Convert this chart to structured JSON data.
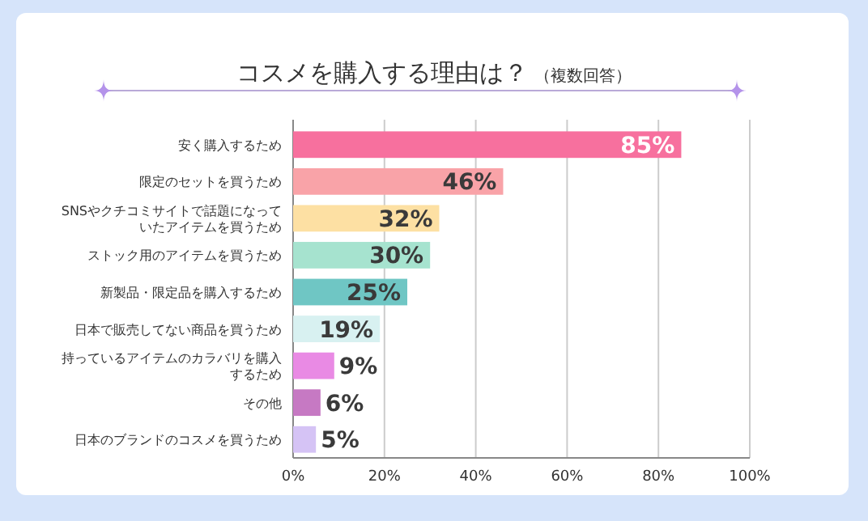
{
  "chart_data": {
    "type": "bar",
    "orientation": "horizontal",
    "title": "コスメを購入する理由は？",
    "subtitle": "（複数回答）",
    "categories": [
      "安く購入するため",
      "限定のセットを買うため",
      "SNSやクチコミサイトで話題になっていたアイテムを買うため",
      "ストック用のアイテムを買うため",
      "新製品・限定品を購入するため",
      "日本で販売してない商品を買うため",
      "持っているアイテムのカラバリを購入するため",
      "その他",
      "日本のブランドのコスメを買うため"
    ],
    "values": [
      85,
      46,
      32,
      30,
      25,
      19,
      9,
      6,
      5
    ],
    "value_labels": [
      "85%",
      "46%",
      "32%",
      "30%",
      "25%",
      "19%",
      "9%",
      "6%",
      "5%"
    ],
    "colors": [
      "#f7709e",
      "#f9a3a8",
      "#fde0a3",
      "#a6e3cf",
      "#6fc6c4",
      "#d8f1f1",
      "#e98ae4",
      "#c679c3",
      "#d5c3f5"
    ],
    "xlim": [
      0,
      100
    ],
    "xticks": [
      {
        "value": 0,
        "label": "0%"
      },
      {
        "value": 20,
        "label": "20%"
      },
      {
        "value": 40,
        "label": "40%"
      },
      {
        "value": 60,
        "label": "60%"
      },
      {
        "value": 80,
        "label": "80%"
      },
      {
        "value": 100,
        "label": "100%"
      }
    ],
    "grid": "x"
  }
}
